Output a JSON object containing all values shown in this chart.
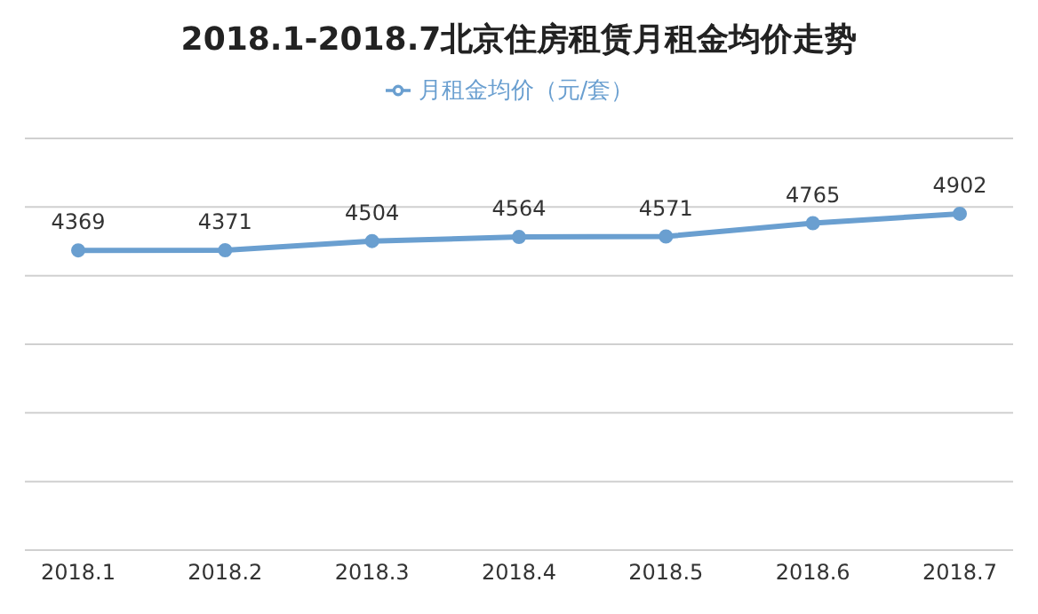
{
  "chart_data": {
    "type": "line",
    "title": "2018.1-2018.7北京住房租赁月租金均价走势",
    "categories": [
      "2018.1",
      "2018.2",
      "2018.3",
      "2018.4",
      "2018.5",
      "2018.6",
      "2018.7"
    ],
    "series": [
      {
        "name": "月租金均价（元/套）",
        "color": "#6a9fd0",
        "values": [
          4369,
          4371,
          4504,
          4564,
          4571,
          4765,
          4902
        ]
      }
    ],
    "ylim": [
      0,
      6000
    ],
    "yticks": [
      {
        "value": 0,
        "label": null
      },
      {
        "value": 1000,
        "label": null
      },
      {
        "value": 2000,
        "label": null
      },
      {
        "value": 3000,
        "label": null
      },
      {
        "value": 4000,
        "label": null
      },
      {
        "value": 5000,
        "label": null
      },
      {
        "value": 6000,
        "label": null
      }
    ],
    "tick_labels": "x",
    "grid": "y",
    "legend": "top",
    "marker": "circle",
    "line_style": "solid",
    "data_labels": true
  }
}
